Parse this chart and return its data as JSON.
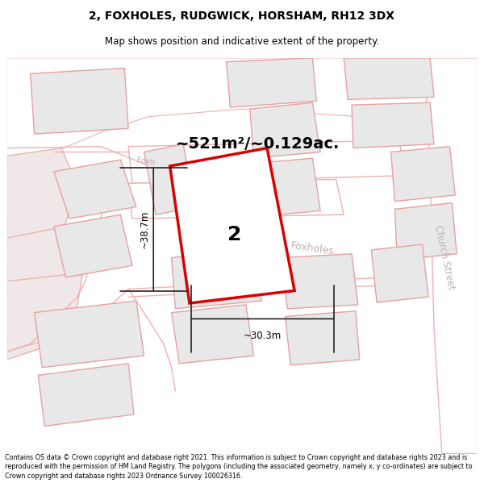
{
  "title": "2, FOXHOLES, RUDGWICK, HORSHAM, RH12 3DX",
  "subtitle": "Map shows position and indicative extent of the property.",
  "area_text": "~521m²/~0.129ac.",
  "width_label": "~30.3m",
  "height_label": "~38.7m",
  "number_label": "2",
  "footer": "Contains OS data © Crown copyright and database right 2021. This information is subject to Crown copyright and database rights 2023 and is reproduced with the permission of HM Land Registry. The polygons (including the associated geometry, namely x, y co-ordinates) are subject to Crown copyright and database rights 2023 Ordnance Survey 100026316.",
  "bg_color": "#ffffff",
  "plot_color": "#dd0000",
  "building_fill": "#e8e8e8",
  "building_edge": "#e8a0a0",
  "road_color": "#f0b0b0",
  "parcel_fill": "#f0e8e8",
  "parcel_edge": "#f0b0b0",
  "street_color": "#c0b0b0",
  "dim_line_color": "#222222"
}
